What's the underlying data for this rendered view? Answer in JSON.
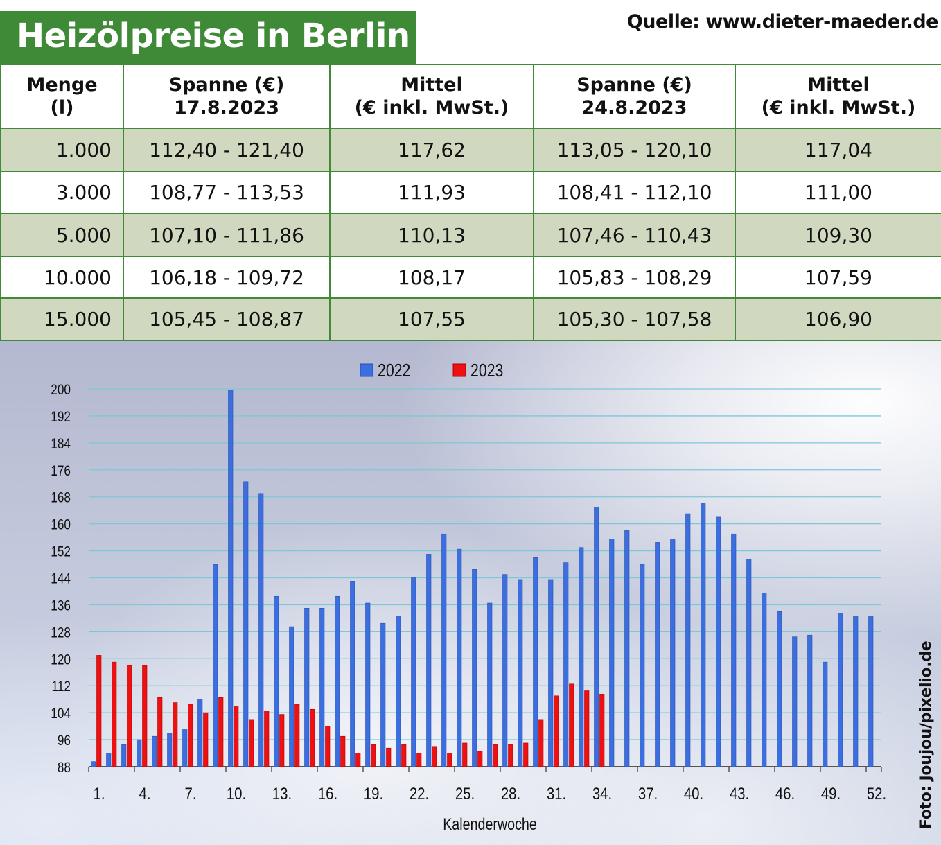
{
  "header": {
    "title": "Heizölpreise in Berlin",
    "source": "Quelle: www.dieter-maeder.de"
  },
  "table": {
    "headers": [
      [
        "Menge",
        "(l)"
      ],
      [
        "Spanne (€)",
        "17.8.2023"
      ],
      [
        "Mittel",
        "(€ inkl. MwSt.)"
      ],
      [
        "Spanne (€)",
        "24.8.2023"
      ],
      [
        "Mittel",
        "(€ inkl. MwSt.)"
      ]
    ],
    "rows": [
      [
        "1.000",
        "112,40 - 121,40",
        "117,62",
        "113,05 - 120,10",
        "117,04"
      ],
      [
        "3.000",
        "108,77 - 113,53",
        "111,93",
        "108,41 - 112,10",
        "111,00"
      ],
      [
        "5.000",
        "107,10 - 111,86",
        "110,13",
        "107,46 - 110,43",
        "109,30"
      ],
      [
        "10.000",
        "106,18 - 109,72",
        "108,17",
        "105,83 - 108,29",
        "107,59"
      ],
      [
        "15.000",
        "105,45 - 108,87",
        "107,55",
        "105,30 - 107,58",
        "106,90"
      ]
    ]
  },
  "photo_credit": "Foto: Joujou/pixelio.de",
  "colors": {
    "header_green": "#3f8a37",
    "row_shade": "#d0d9c0",
    "series_2022": "#3b6fe0",
    "series_2023": "#ee1111"
  },
  "chart_data": {
    "type": "bar",
    "xlabel": "Kalenderwoche",
    "ylabel": "",
    "ylim": [
      88,
      200
    ],
    "yticks": [
      88,
      96,
      104,
      112,
      120,
      128,
      136,
      144,
      152,
      160,
      168,
      176,
      184,
      192,
      200
    ],
    "ytick_labels": [
      "88",
      "96",
      "104",
      "112",
      "120",
      "128",
      "136",
      "144",
      "152",
      "160",
      "168",
      "176",
      "184",
      "192",
      "200"
    ],
    "x": [
      1,
      2,
      3,
      4,
      5,
      6,
      7,
      8,
      9,
      10,
      11,
      12,
      13,
      14,
      15,
      16,
      17,
      18,
      19,
      20,
      21,
      22,
      23,
      24,
      25,
      26,
      27,
      28,
      29,
      30,
      31,
      32,
      33,
      34,
      35,
      36,
      37,
      38,
      39,
      40,
      41,
      42,
      43,
      44,
      45,
      46,
      47,
      48,
      49,
      50,
      51,
      52
    ],
    "xticks": [
      1,
      4,
      7,
      10,
      13,
      16,
      19,
      22,
      25,
      28,
      31,
      34,
      37,
      40,
      43,
      46,
      49,
      52
    ],
    "xtick_labels": [
      "1.",
      "4.",
      "7.",
      "10.",
      "13.",
      "16.",
      "19.",
      "22.",
      "25.",
      "28.",
      "31.",
      "34.",
      "37.",
      "40.",
      "43.",
      "46.",
      "49.",
      "52."
    ],
    "grid": true,
    "legend_position": "top-center",
    "series": [
      {
        "name": "2022",
        "values": [
          89.5,
          92,
          94.5,
          96,
          97,
          98,
          99,
          108,
          148,
          199.5,
          172.5,
          169,
          138.5,
          129.5,
          135,
          135,
          138.5,
          143,
          136.5,
          130.5,
          132.5,
          144,
          151,
          157,
          152.5,
          146.5,
          136.5,
          145,
          143.5,
          150,
          143.5,
          148.5,
          153,
          165,
          155.5,
          158,
          148,
          154.5,
          155.5,
          163,
          166,
          162,
          157,
          149.5,
          139.5,
          134,
          126.5,
          127,
          119,
          133.5,
          132.5,
          132.5
        ]
      },
      {
        "name": "2023",
        "values": [
          121,
          119,
          118,
          118,
          108.5,
          107,
          106.5,
          104,
          108.5,
          106,
          102,
          104.5,
          103.5,
          106.5,
          105,
          100,
          97,
          92,
          94.5,
          93.5,
          94.5,
          92,
          94,
          92,
          95,
          92.5,
          94.5,
          94.5,
          95,
          102,
          109,
          112.5,
          110.5,
          109.5,
          null,
          null,
          null,
          null,
          null,
          null,
          null,
          null,
          null,
          null,
          null,
          null,
          null,
          null,
          null,
          null,
          null,
          null
        ]
      }
    ]
  }
}
